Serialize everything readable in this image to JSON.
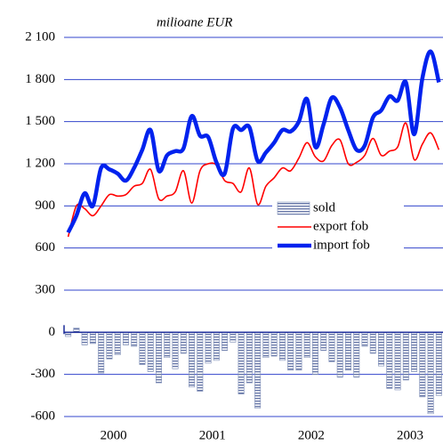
{
  "chart_data": {
    "type": "bar_line",
    "y_unit_label": "milioane EUR",
    "categories": [
      null,
      null,
      null,
      null,
      null,
      "2000",
      null,
      null,
      null,
      null,
      null,
      null,
      null,
      null,
      null,
      null,
      null,
      "2001",
      null,
      null,
      null,
      null,
      null,
      null,
      null,
      null,
      null,
      null,
      null,
      "2002",
      null,
      null,
      null,
      null,
      null,
      null,
      null,
      null,
      null,
      null,
      null,
      "2003",
      null,
      null,
      null,
      null
    ],
    "series": [
      {
        "name": "sold",
        "kind": "bar",
        "color": "#8090b8",
        "values": [
          -30,
          30,
          -90,
          -80,
          -290,
          -190,
          -160,
          -90,
          -100,
          -230,
          -280,
          -360,
          -180,
          -260,
          -150,
          -390,
          -420,
          -220,
          -200,
          -130,
          -70,
          -440,
          -360,
          -540,
          -180,
          -170,
          -200,
          -270,
          -270,
          -180,
          -300,
          -130,
          -210,
          -320,
          -270,
          -320,
          -100,
          -150,
          -240,
          -400,
          -410,
          -340,
          -280,
          -460,
          -580,
          -450
        ]
      },
      {
        "name": "export fob",
        "kind": "line",
        "color": "#ff0000",
        "values": [
          680,
          900,
          880,
          830,
          900,
          980,
          970,
          980,
          1040,
          1060,
          1160,
          950,
          970,
          1000,
          1150,
          920,
          1150,
          1200,
          1190,
          1080,
          1060,
          1000,
          1170,
          910,
          1040,
          1100,
          1170,
          1150,
          1240,
          1350,
          1250,
          1220,
          1330,
          1370,
          1200,
          1210,
          1260,
          1380,
          1260,
          1290,
          1320,
          1490,
          1230,
          1340,
          1420,
          1300
        ]
      },
      {
        "name": "import fob",
        "kind": "line",
        "color": "#0022ee",
        "values": [
          710,
          830,
          990,
          900,
          1170,
          1160,
          1130,
          1080,
          1170,
          1300,
          1440,
          1150,
          1260,
          1290,
          1310,
          1540,
          1400,
          1390,
          1210,
          1130,
          1450,
          1440,
          1460,
          1220,
          1280,
          1350,
          1440,
          1430,
          1500,
          1660,
          1320,
          1480,
          1670,
          1600,
          1440,
          1300,
          1330,
          1530,
          1580,
          1680,
          1650,
          1780,
          1410,
          1810,
          2000,
          1780
        ]
      }
    ],
    "ylim": [
      -600,
      2100
    ],
    "yticks": [
      -600,
      -300,
      0,
      300,
      600,
      900,
      {
        "value": 1200,
        "label": "1 200"
      },
      {
        "value": 1500,
        "label": "1 500"
      },
      {
        "value": 1800,
        "label": "1 800"
      },
      {
        "value": 2100,
        "label": "2 100"
      }
    ],
    "grid": true,
    "legend": "center-right"
  }
}
